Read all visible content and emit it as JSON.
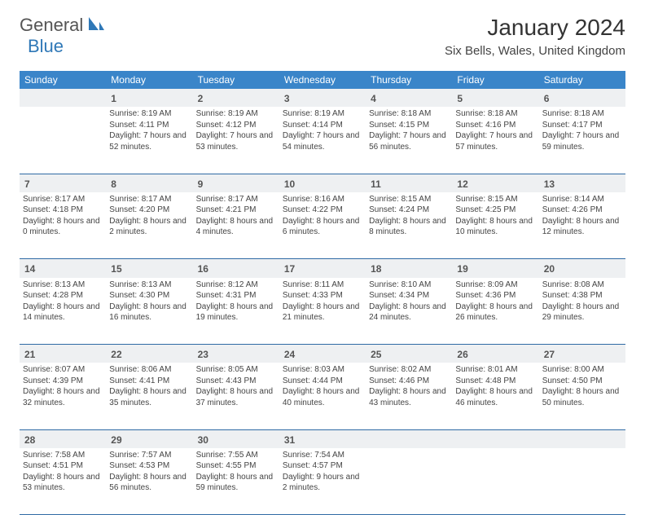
{
  "brand": {
    "general": "General",
    "blue": "Blue"
  },
  "title": "January 2024",
  "location": "Six Bells, Wales, United Kingdom",
  "colors": {
    "header_bg": "#3a85c9",
    "header_text": "#ffffff",
    "daynum_bg": "#eef0f2",
    "rule": "#2f6aa5",
    "brand_blue": "#2f78b7"
  },
  "weekdays": [
    "Sunday",
    "Monday",
    "Tuesday",
    "Wednesday",
    "Thursday",
    "Friday",
    "Saturday"
  ],
  "weeks": [
    [
      null,
      {
        "d": "1",
        "sr": "Sunrise: 8:19 AM",
        "ss": "Sunset: 4:11 PM",
        "dl": "Daylight: 7 hours and 52 minutes."
      },
      {
        "d": "2",
        "sr": "Sunrise: 8:19 AM",
        "ss": "Sunset: 4:12 PM",
        "dl": "Daylight: 7 hours and 53 minutes."
      },
      {
        "d": "3",
        "sr": "Sunrise: 8:19 AM",
        "ss": "Sunset: 4:14 PM",
        "dl": "Daylight: 7 hours and 54 minutes."
      },
      {
        "d": "4",
        "sr": "Sunrise: 8:18 AM",
        "ss": "Sunset: 4:15 PM",
        "dl": "Daylight: 7 hours and 56 minutes."
      },
      {
        "d": "5",
        "sr": "Sunrise: 8:18 AM",
        "ss": "Sunset: 4:16 PM",
        "dl": "Daylight: 7 hours and 57 minutes."
      },
      {
        "d": "6",
        "sr": "Sunrise: 8:18 AM",
        "ss": "Sunset: 4:17 PM",
        "dl": "Daylight: 7 hours and 59 minutes."
      }
    ],
    [
      {
        "d": "7",
        "sr": "Sunrise: 8:17 AM",
        "ss": "Sunset: 4:18 PM",
        "dl": "Daylight: 8 hours and 0 minutes."
      },
      {
        "d": "8",
        "sr": "Sunrise: 8:17 AM",
        "ss": "Sunset: 4:20 PM",
        "dl": "Daylight: 8 hours and 2 minutes."
      },
      {
        "d": "9",
        "sr": "Sunrise: 8:17 AM",
        "ss": "Sunset: 4:21 PM",
        "dl": "Daylight: 8 hours and 4 minutes."
      },
      {
        "d": "10",
        "sr": "Sunrise: 8:16 AM",
        "ss": "Sunset: 4:22 PM",
        "dl": "Daylight: 8 hours and 6 minutes."
      },
      {
        "d": "11",
        "sr": "Sunrise: 8:15 AM",
        "ss": "Sunset: 4:24 PM",
        "dl": "Daylight: 8 hours and 8 minutes."
      },
      {
        "d": "12",
        "sr": "Sunrise: 8:15 AM",
        "ss": "Sunset: 4:25 PM",
        "dl": "Daylight: 8 hours and 10 minutes."
      },
      {
        "d": "13",
        "sr": "Sunrise: 8:14 AM",
        "ss": "Sunset: 4:26 PM",
        "dl": "Daylight: 8 hours and 12 minutes."
      }
    ],
    [
      {
        "d": "14",
        "sr": "Sunrise: 8:13 AM",
        "ss": "Sunset: 4:28 PM",
        "dl": "Daylight: 8 hours and 14 minutes."
      },
      {
        "d": "15",
        "sr": "Sunrise: 8:13 AM",
        "ss": "Sunset: 4:30 PM",
        "dl": "Daylight: 8 hours and 16 minutes."
      },
      {
        "d": "16",
        "sr": "Sunrise: 8:12 AM",
        "ss": "Sunset: 4:31 PM",
        "dl": "Daylight: 8 hours and 19 minutes."
      },
      {
        "d": "17",
        "sr": "Sunrise: 8:11 AM",
        "ss": "Sunset: 4:33 PM",
        "dl": "Daylight: 8 hours and 21 minutes."
      },
      {
        "d": "18",
        "sr": "Sunrise: 8:10 AM",
        "ss": "Sunset: 4:34 PM",
        "dl": "Daylight: 8 hours and 24 minutes."
      },
      {
        "d": "19",
        "sr": "Sunrise: 8:09 AM",
        "ss": "Sunset: 4:36 PM",
        "dl": "Daylight: 8 hours and 26 minutes."
      },
      {
        "d": "20",
        "sr": "Sunrise: 8:08 AM",
        "ss": "Sunset: 4:38 PM",
        "dl": "Daylight: 8 hours and 29 minutes."
      }
    ],
    [
      {
        "d": "21",
        "sr": "Sunrise: 8:07 AM",
        "ss": "Sunset: 4:39 PM",
        "dl": "Daylight: 8 hours and 32 minutes."
      },
      {
        "d": "22",
        "sr": "Sunrise: 8:06 AM",
        "ss": "Sunset: 4:41 PM",
        "dl": "Daylight: 8 hours and 35 minutes."
      },
      {
        "d": "23",
        "sr": "Sunrise: 8:05 AM",
        "ss": "Sunset: 4:43 PM",
        "dl": "Daylight: 8 hours and 37 minutes."
      },
      {
        "d": "24",
        "sr": "Sunrise: 8:03 AM",
        "ss": "Sunset: 4:44 PM",
        "dl": "Daylight: 8 hours and 40 minutes."
      },
      {
        "d": "25",
        "sr": "Sunrise: 8:02 AM",
        "ss": "Sunset: 4:46 PM",
        "dl": "Daylight: 8 hours and 43 minutes."
      },
      {
        "d": "26",
        "sr": "Sunrise: 8:01 AM",
        "ss": "Sunset: 4:48 PM",
        "dl": "Daylight: 8 hours and 46 minutes."
      },
      {
        "d": "27",
        "sr": "Sunrise: 8:00 AM",
        "ss": "Sunset: 4:50 PM",
        "dl": "Daylight: 8 hours and 50 minutes."
      }
    ],
    [
      {
        "d": "28",
        "sr": "Sunrise: 7:58 AM",
        "ss": "Sunset: 4:51 PM",
        "dl": "Daylight: 8 hours and 53 minutes."
      },
      {
        "d": "29",
        "sr": "Sunrise: 7:57 AM",
        "ss": "Sunset: 4:53 PM",
        "dl": "Daylight: 8 hours and 56 minutes."
      },
      {
        "d": "30",
        "sr": "Sunrise: 7:55 AM",
        "ss": "Sunset: 4:55 PM",
        "dl": "Daylight: 8 hours and 59 minutes."
      },
      {
        "d": "31",
        "sr": "Sunrise: 7:54 AM",
        "ss": "Sunset: 4:57 PM",
        "dl": "Daylight: 9 hours and 2 minutes."
      },
      null,
      null,
      null
    ]
  ]
}
